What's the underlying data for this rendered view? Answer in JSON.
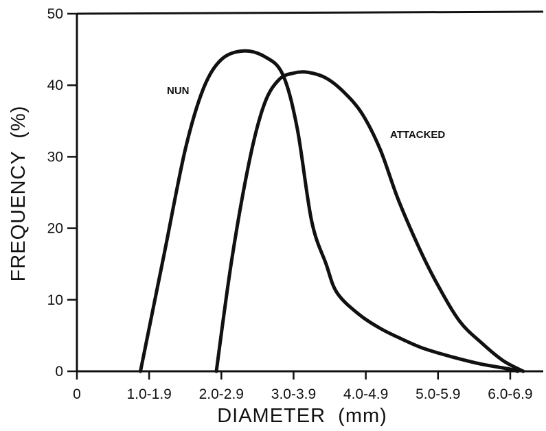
{
  "chart_data": {
    "type": "line",
    "title": "",
    "xlabel": "DIAMETER  (mm)",
    "ylabel": "FREQUENCY  (%)",
    "ylim": [
      0,
      50
    ],
    "yticks": [
      0,
      10,
      20,
      30,
      40,
      50
    ],
    "xlim": [
      0,
      6.4
    ],
    "xticks": [
      {
        "value": 0,
        "label": "0"
      },
      {
        "value": 1,
        "label": "1.0-1.9"
      },
      {
        "value": 2,
        "label": "2.0-2.9"
      },
      {
        "value": 3,
        "label": "3.0-3.9"
      },
      {
        "value": 4,
        "label": "4.0-4.9"
      },
      {
        "value": 5,
        "label": "5.0-5.9"
      },
      {
        "value": 6,
        "label": "6.0-6.9"
      }
    ],
    "grid": false,
    "series": [
      {
        "name": "NUN",
        "color": "#111111",
        "points": [
          [
            0.88,
            0
          ],
          [
            1.2,
            16
          ],
          [
            1.5,
            31
          ],
          [
            1.75,
            39.5
          ],
          [
            2.0,
            43.6
          ],
          [
            2.3,
            44.8
          ],
          [
            2.6,
            44.0
          ],
          [
            2.85,
            41.5
          ],
          [
            3.05,
            34
          ],
          [
            3.25,
            21
          ],
          [
            3.45,
            15
          ],
          [
            3.6,
            11
          ],
          [
            3.9,
            8.0
          ],
          [
            4.2,
            6.0
          ],
          [
            4.5,
            4.5
          ],
          [
            4.8,
            3.2
          ],
          [
            5.2,
            2.0
          ],
          [
            5.6,
            1.0
          ],
          [
            6.0,
            0.3
          ],
          [
            6.1,
            0
          ]
        ]
      },
      {
        "name": "ATTACKED",
        "color": "#111111",
        "points": [
          [
            1.93,
            0
          ],
          [
            2.15,
            16
          ],
          [
            2.4,
            30
          ],
          [
            2.6,
            37.5
          ],
          [
            2.8,
            40.8
          ],
          [
            3.0,
            41.7
          ],
          [
            3.2,
            41.8
          ],
          [
            3.45,
            41.0
          ],
          [
            3.7,
            39
          ],
          [
            3.95,
            36
          ],
          [
            4.2,
            31
          ],
          [
            4.45,
            24
          ],
          [
            4.75,
            17
          ],
          [
            5.0,
            12
          ],
          [
            5.3,
            7
          ],
          [
            5.6,
            4
          ],
          [
            5.9,
            1.5
          ],
          [
            6.18,
            0
          ]
        ]
      }
    ],
    "annotations": [
      {
        "text": "NUN",
        "series": "NUN"
      },
      {
        "text": "ATTACKED",
        "series": "ATTACKED"
      }
    ],
    "legend": "none"
  }
}
